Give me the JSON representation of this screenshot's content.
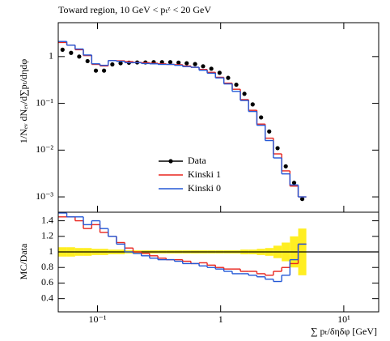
{
  "chart_data": [
    {
      "type": "step",
      "title": "Toward region, 10 GeV < pₜᶻ < 20 GeV",
      "y_label": "1/Nₑᵥ dNₑᵥ/d∑pₜ/dηdφ",
      "log_x": true,
      "log_y": true,
      "x": [
        0.052,
        0.061,
        0.071,
        0.083,
        0.097,
        0.113,
        0.132,
        0.154,
        0.18,
        0.21,
        0.245,
        0.286,
        0.334,
        0.39,
        0.455,
        0.53,
        0.62,
        0.72,
        0.84,
        0.98,
        1.15,
        1.34,
        1.56,
        1.82,
        2.13,
        2.48,
        2.9,
        3.38,
        3.95,
        4.6
      ],
      "xlim": [
        0.048,
        19.2
      ],
      "ylim": [
        0.00047,
        5.3
      ],
      "yticks": [
        {
          "value": 0.001,
          "label": "10⁻³"
        },
        {
          "value": 0.01,
          "label": "10⁻²"
        },
        {
          "value": 0.1,
          "label": "10⁻¹"
        },
        1
      ],
      "legend": "lower-center",
      "series": [
        {
          "name": "Data",
          "color": "#000000",
          "values": [
            1.4,
            1.2,
            1.0,
            0.8,
            0.5,
            0.5,
            0.68,
            0.72,
            0.74,
            0.75,
            0.75,
            0.76,
            0.76,
            0.76,
            0.74,
            0.72,
            0.69,
            0.62,
            0.55,
            0.45,
            0.35,
            0.25,
            0.16,
            0.095,
            0.05,
            0.025,
            0.011,
            0.0045,
            0.002,
            0.0009
          ]
        },
        {
          "name": "Kinski 1",
          "color": "#e8251e",
          "values": [
            2.0,
            1.75,
            1.4,
            1.05,
            0.68,
            0.63,
            0.82,
            0.81,
            0.78,
            0.75,
            0.74,
            0.72,
            0.7,
            0.68,
            0.67,
            0.63,
            0.59,
            0.53,
            0.46,
            0.36,
            0.27,
            0.2,
            0.12,
            0.071,
            0.036,
            0.018,
            0.0083,
            0.0036,
            0.0017,
            0.001
          ]
        },
        {
          "name": "Kinski 0",
          "color": "#2458d6",
          "values": [
            2.1,
            1.75,
            1.45,
            1.08,
            0.7,
            0.65,
            0.82,
            0.79,
            0.74,
            0.74,
            0.71,
            0.7,
            0.68,
            0.68,
            0.65,
            0.61,
            0.59,
            0.51,
            0.44,
            0.35,
            0.26,
            0.18,
            0.115,
            0.067,
            0.034,
            0.016,
            0.0068,
            0.0031,
            0.0018,
            0.001
          ]
        }
      ]
    },
    {
      "type": "ratio",
      "y_label": "MC/Data",
      "x_label": "∑ pₜ/δηδφ [GeV]",
      "xlim": [
        0.048,
        19.2
      ],
      "ylim": [
        0.23,
        1.51
      ],
      "xticks": [
        {
          "value": 0.1,
          "label": "10⁻¹"
        },
        1,
        {
          "value": 10,
          "label": "10¹"
        }
      ],
      "yticks": [
        0.4,
        0.6,
        0.8,
        1,
        1.2,
        1.4
      ],
      "band_color": "#ffee22",
      "band": [
        0.06,
        0.06,
        0.05,
        0.05,
        0.04,
        0.04,
        0.03,
        0.03,
        0.02,
        0.02,
        0.02,
        0.02,
        0.02,
        0.02,
        0.02,
        0.02,
        0.02,
        0.02,
        0.02,
        0.02,
        0.02,
        0.02,
        0.03,
        0.03,
        0.04,
        0.05,
        0.08,
        0.12,
        0.2,
        0.3
      ],
      "series": [
        {
          "color": "#e8251e",
          "values": [
            1.45,
            1.45,
            1.4,
            1.3,
            1.35,
            1.25,
            1.2,
            1.12,
            1.05,
            1.0,
            0.98,
            0.95,
            0.92,
            0.9,
            0.9,
            0.88,
            0.85,
            0.86,
            0.83,
            0.8,
            0.78,
            0.78,
            0.75,
            0.75,
            0.72,
            0.7,
            0.75,
            0.8,
            0.85,
            1.1
          ]
        },
        {
          "color": "#2458d6",
          "values": [
            1.5,
            1.45,
            1.45,
            1.35,
            1.4,
            1.3,
            1.2,
            1.1,
            1.0,
            0.98,
            0.95,
            0.92,
            0.9,
            0.9,
            0.88,
            0.85,
            0.85,
            0.82,
            0.8,
            0.78,
            0.75,
            0.72,
            0.72,
            0.7,
            0.68,
            0.65,
            0.62,
            0.7,
            0.9,
            1.1
          ]
        }
      ]
    }
  ]
}
